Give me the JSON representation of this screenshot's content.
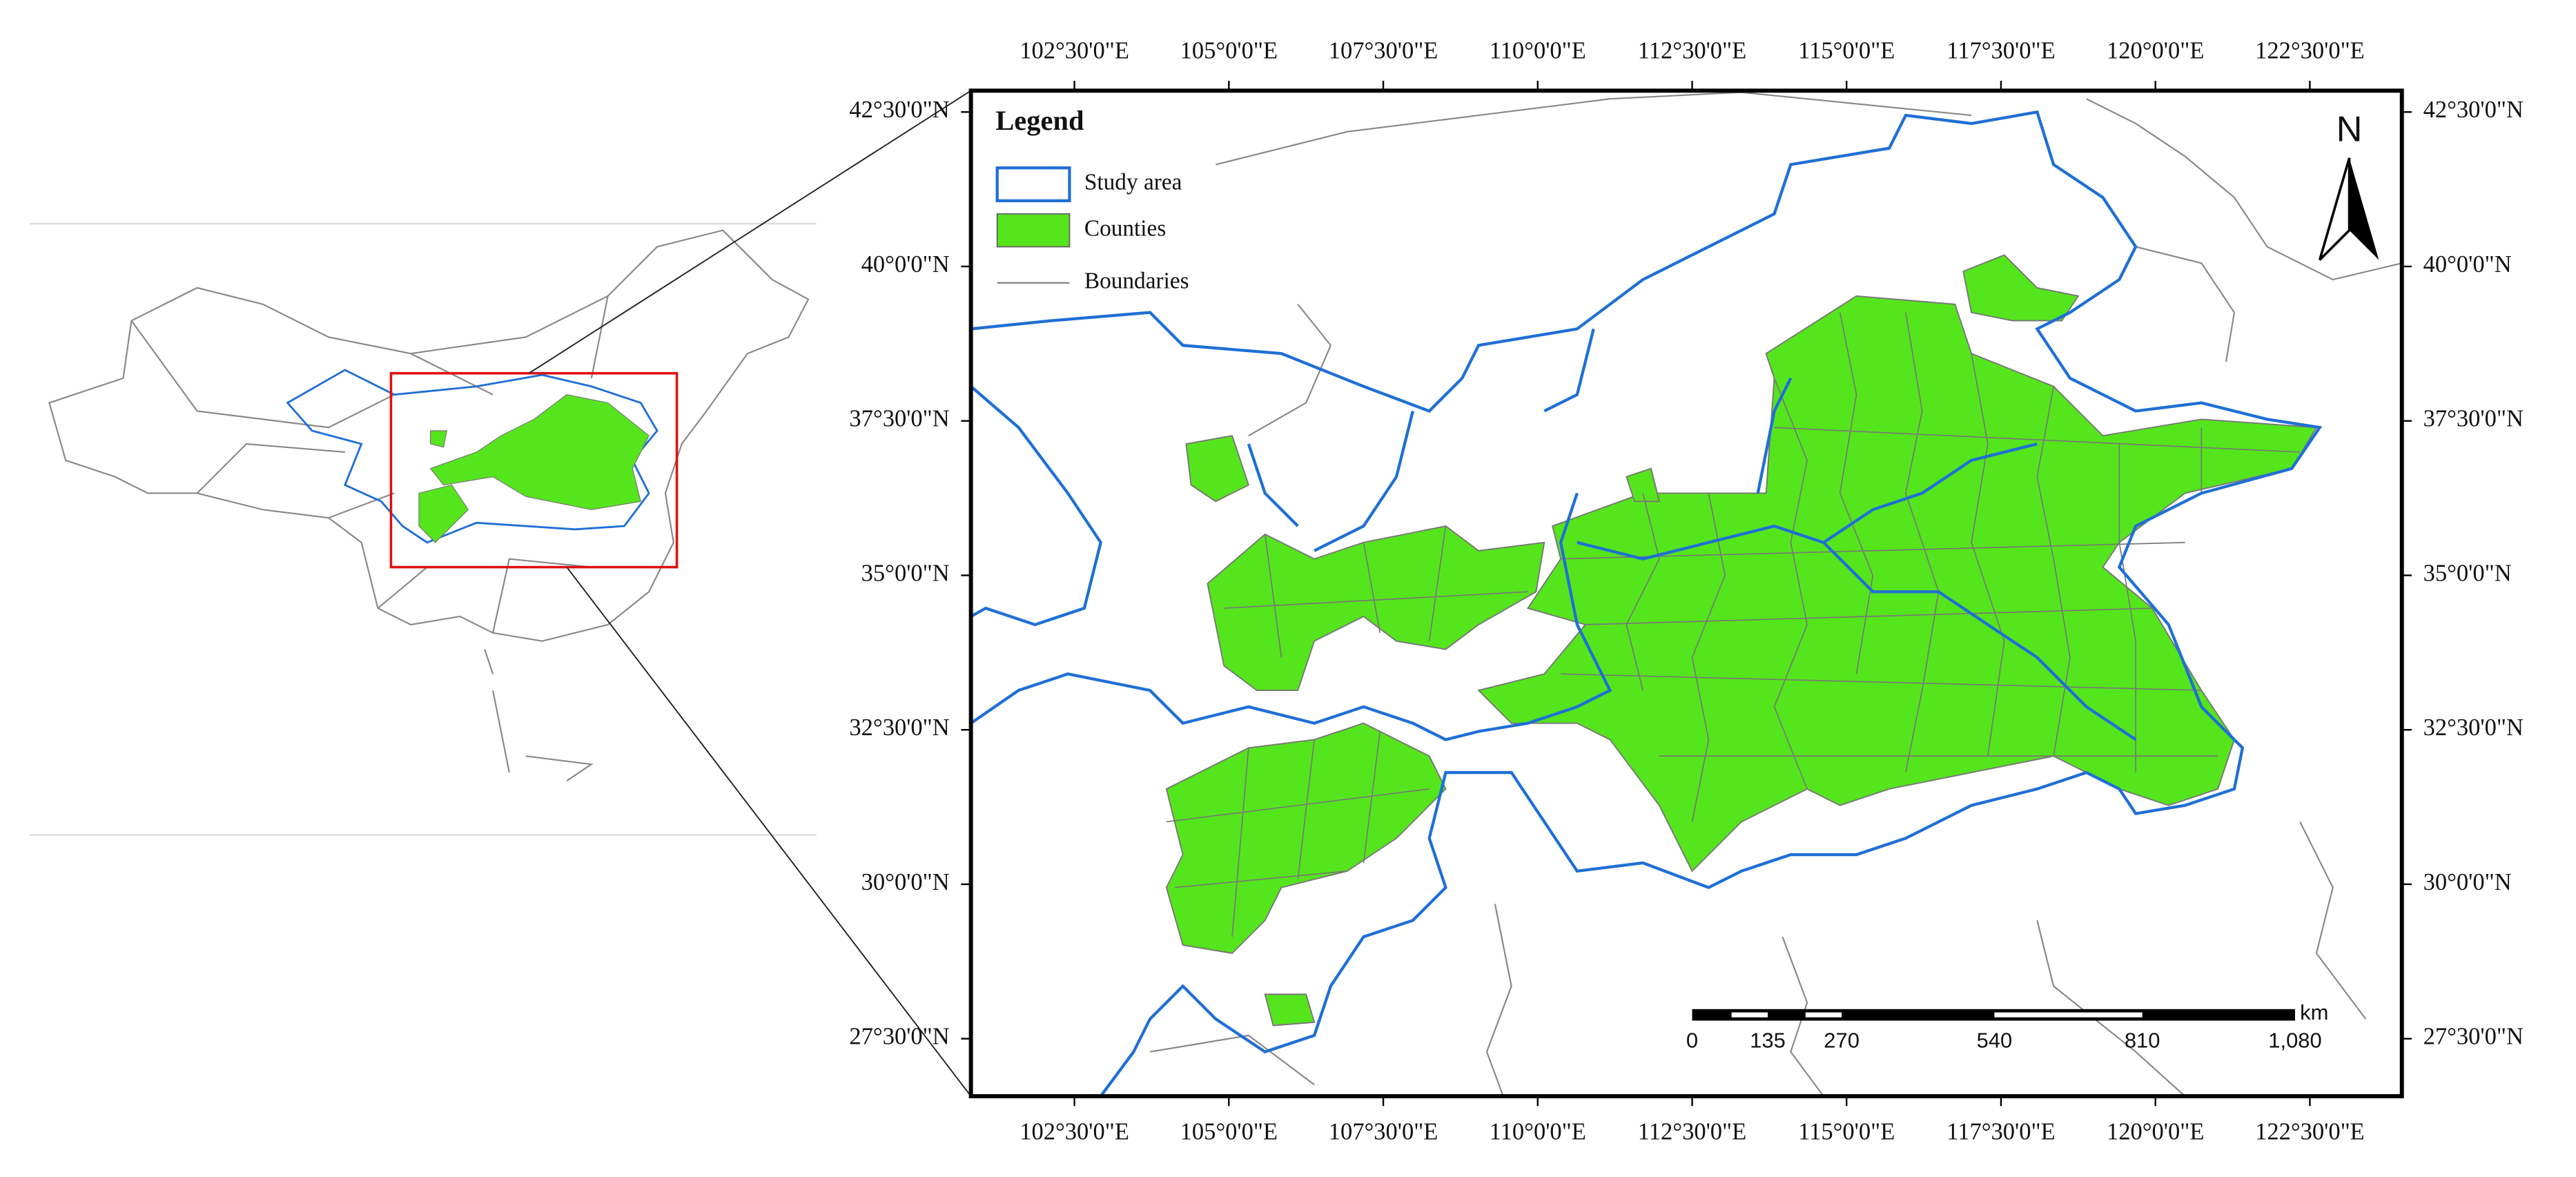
{
  "legend": {
    "title": "Legend",
    "items": [
      "Study area",
      "Counties",
      "Boundaries"
    ]
  },
  "north_arrow": "N",
  "longitude_labels": [
    "102°30'0\"E",
    "105°0'0\"E",
    "107°30'0\"E",
    "110°0'0\"E",
    "112°30'0\"E",
    "115°0'0\"E",
    "117°30'0\"E",
    "120°0'0\"E",
    "122°30'0\"E"
  ],
  "latitude_labels": [
    "42°30'0\"N",
    "40°0'0\"N",
    "37°30'0\"N",
    "35°0'0\"N",
    "32°30'0\"N",
    "30°0'0\"N",
    "27°30'0\"N"
  ],
  "scale_bar": {
    "labels": [
      "0",
      "135",
      "270",
      "540",
      "810",
      "1,080"
    ],
    "unit": "km"
  }
}
